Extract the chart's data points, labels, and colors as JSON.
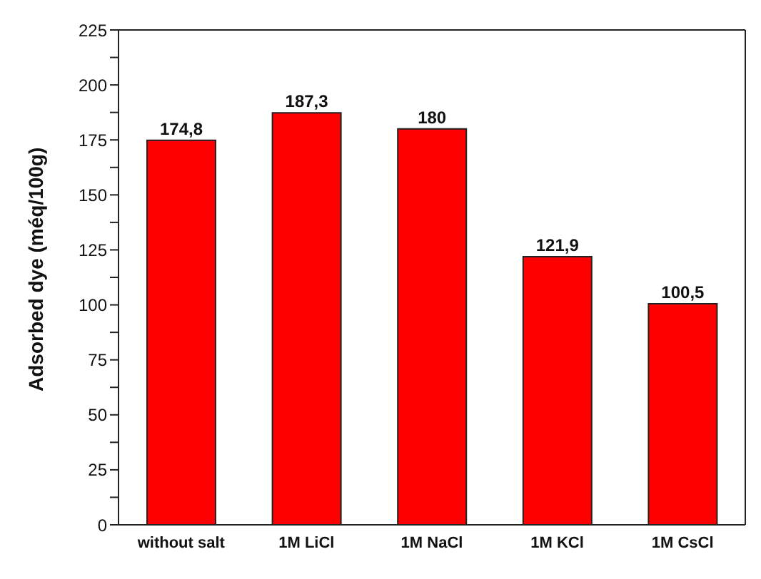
{
  "chart_data": {
    "type": "bar",
    "ylabel": "Adsorbed dye (méq/100g)",
    "categories": [
      "without salt",
      "1M LiCl",
      "1M NaCl",
      "1M KCl",
      "1M CsCl"
    ],
    "values": [
      174.8,
      187.3,
      180,
      121.9,
      100.5
    ],
    "value_labels": [
      "174,8",
      "187,3",
      "180",
      "121,9",
      "100,5"
    ],
    "color": "#ff0000",
    "ylim": [
      0,
      225
    ],
    "yticks": [
      0,
      {
        "value": 12.5,
        "label": null
      },
      25,
      {
        "value": 37.5,
        "label": null
      },
      50,
      {
        "value": 62.5,
        "label": null
      },
      75,
      {
        "value": 87.5,
        "label": null
      },
      100,
      {
        "value": 112.5,
        "label": null
      },
      125,
      {
        "value": 137.5,
        "label": null
      },
      150,
      {
        "value": 162.5,
        "label": null
      },
      175,
      {
        "value": 187.5,
        "label": null
      },
      200,
      {
        "value": 212.5,
        "label": null
      },
      225
    ],
    "grid": false,
    "legend": false
  }
}
